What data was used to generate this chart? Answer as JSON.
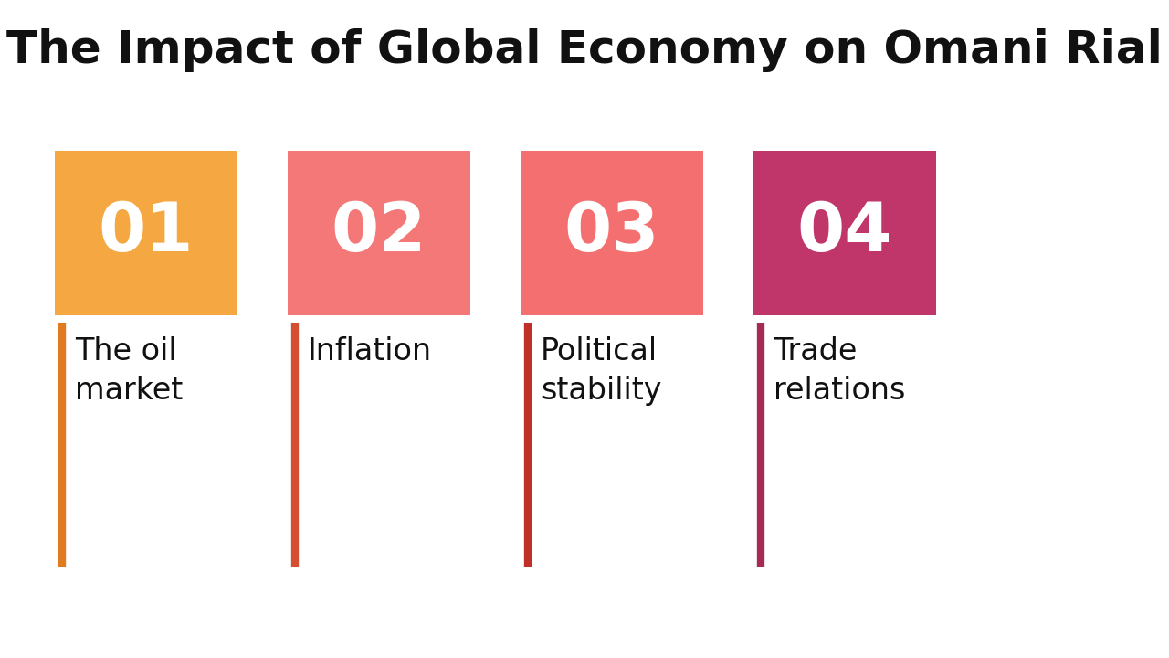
{
  "title": "The Impact of Global Economy on Omani Rial",
  "title_fontsize": 36,
  "title_color": "#111111",
  "background_color": "#ffffff",
  "items": [
    {
      "number": "01",
      "label": "The oil\nmarket",
      "box_color": "#F5A742",
      "line_color": "#E07B20"
    },
    {
      "number": "02",
      "label": "Inflation",
      "box_color": "#F47878",
      "line_color": "#D44F30"
    },
    {
      "number": "03",
      "label": "Political\nstability",
      "box_color": "#F47070",
      "line_color": "#C0302A"
    },
    {
      "number": "04",
      "label": "Trade\nrelations",
      "box_color": "#C0366A",
      "line_color": "#A52A55"
    }
  ],
  "number_fontsize": 54,
  "label_fontsize": 24,
  "number_color": "#ffffff",
  "label_color": "#111111",
  "line_width": 6
}
